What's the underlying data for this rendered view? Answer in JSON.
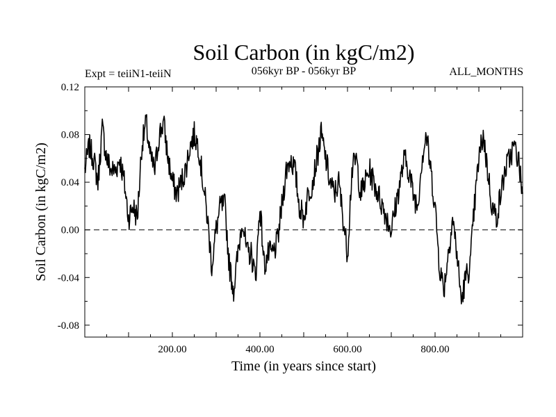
{
  "chart_data": {
    "type": "line",
    "title": "Soil Carbon (in kgC/m2)",
    "subtitle_left": "Expt = teiiN1-teiiN",
    "subtitle_center": "056kyr BP - 056kyr BP",
    "subtitle_right": "ALL_MONTHS",
    "xlabel": "Time (in years since start)",
    "ylabel": "Soil Carbon (in kgC/m2)",
    "xlim": [
      0,
      1000
    ],
    "ylim": [
      -0.09,
      0.12
    ],
    "xticks": [
      200,
      400,
      600,
      800
    ],
    "xtick_labels": [
      "200.00",
      "400.00",
      "600.00",
      "800.00"
    ],
    "yticks": [
      -0.08,
      -0.04,
      0.0,
      0.04,
      0.08,
      0.12
    ],
    "ytick_labels": [
      "-0.08",
      "-0.04",
      "0.00",
      "0.04",
      "0.08",
      "0.12"
    ],
    "zero_line": "dashed",
    "grid": false,
    "series": [
      {
        "color": "#000000",
        "x": [
          0,
          10,
          20,
          30,
          40,
          50,
          60,
          70,
          80,
          90,
          100,
          110,
          120,
          130,
          140,
          150,
          160,
          170,
          180,
          190,
          200,
          210,
          220,
          230,
          240,
          250,
          260,
          270,
          280,
          290,
          300,
          310,
          320,
          330,
          340,
          350,
          360,
          370,
          380,
          390,
          400,
          410,
          420,
          430,
          440,
          450,
          460,
          470,
          480,
          490,
          500,
          510,
          520,
          530,
          540,
          550,
          560,
          570,
          580,
          590,
          600,
          610,
          620,
          630,
          640,
          650,
          660,
          670,
          680,
          690,
          700,
          710,
          720,
          730,
          740,
          750,
          760,
          770,
          780,
          790,
          800,
          810,
          820,
          830,
          840,
          850,
          860,
          870,
          880,
          890,
          900,
          910,
          920,
          930,
          940,
          950,
          960,
          970,
          980,
          990,
          1000
        ],
        "y": [
          0.05,
          0.07,
          0.06,
          0.04,
          0.085,
          0.06,
          0.05,
          0.05,
          0.06,
          0.04,
          0.01,
          0.02,
          0.01,
          0.07,
          0.09,
          0.06,
          0.05,
          0.08,
          0.09,
          0.06,
          0.04,
          0.03,
          0.04,
          0.05,
          0.07,
          0.08,
          0.07,
          0.04,
          0.01,
          -0.03,
          0.0,
          0.02,
          0.02,
          -0.03,
          -0.05,
          -0.02,
          0.01,
          -0.02,
          -0.02,
          -0.04,
          0.02,
          -0.03,
          -0.02,
          -0.02,
          -0.01,
          0.02,
          0.05,
          0.06,
          0.05,
          0.02,
          0.01,
          0.03,
          0.04,
          0.06,
          0.08,
          0.06,
          0.04,
          0.03,
          0.04,
          0.01,
          -0.02,
          0.05,
          0.06,
          0.03,
          0.04,
          0.05,
          0.04,
          0.03,
          0.02,
          0.01,
          0.0,
          0.02,
          0.04,
          0.06,
          0.05,
          0.03,
          0.02,
          0.06,
          0.08,
          0.05,
          0.02,
          -0.03,
          -0.05,
          -0.02,
          0.01,
          -0.02,
          -0.06,
          -0.04,
          -0.03,
          0.02,
          0.06,
          0.08,
          0.05,
          0.02,
          0.01,
          0.03,
          0.05,
          0.06,
          0.07,
          0.06,
          0.03
        ]
      }
    ]
  }
}
